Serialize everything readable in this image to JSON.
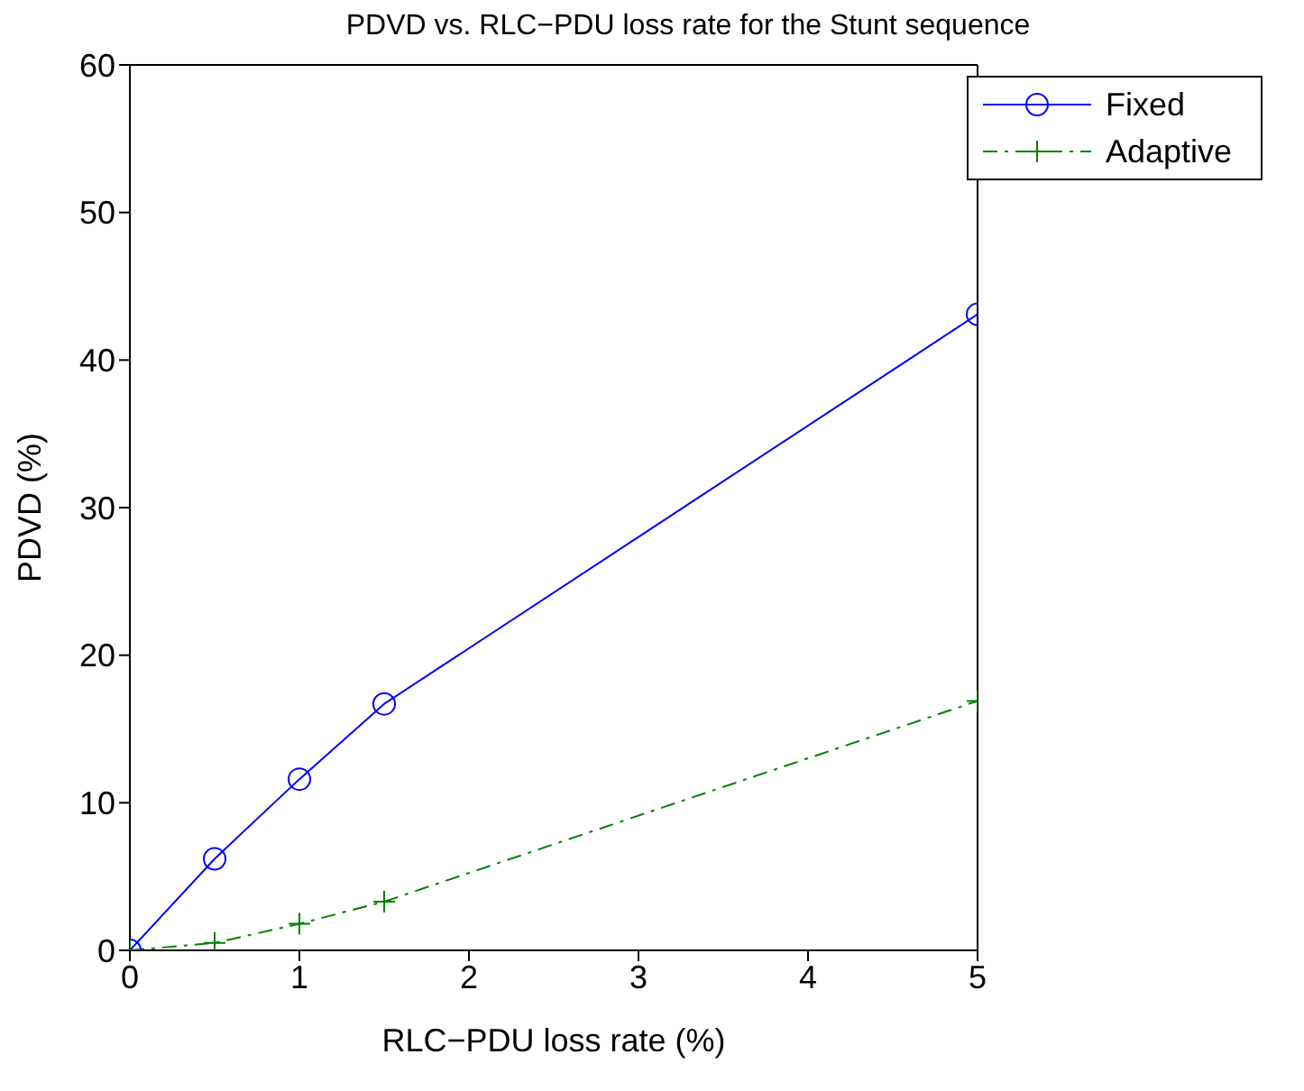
{
  "chart_data": {
    "type": "line",
    "title": "PDVD vs. RLC−PDU loss rate for the Stunt sequence",
    "xlabel": "RLC−PDU loss rate (%)",
    "ylabel": "PDVD (%)",
    "x": [
      0,
      0.5,
      1,
      1.5,
      5
    ],
    "series": [
      {
        "name": "Fixed",
        "color": "#0000ff",
        "values": [
          0,
          6.2,
          11.6,
          16.7,
          43.1
        ],
        "marker": "circle",
        "line_style": "solid"
      },
      {
        "name": "Adaptive",
        "color": "#008000",
        "values": [
          0,
          0.5,
          1.8,
          3.3,
          16.9
        ],
        "marker": "cross",
        "line_style": "dashed"
      }
    ],
    "xlim": [
      0,
      5
    ],
    "xticks": [
      0,
      1,
      2,
      3,
      4,
      5
    ],
    "ylim": [
      0,
      60
    ],
    "yticks": [
      0,
      10,
      20,
      30,
      40,
      50,
      60
    ],
    "grid": false,
    "legend": "top right"
  }
}
